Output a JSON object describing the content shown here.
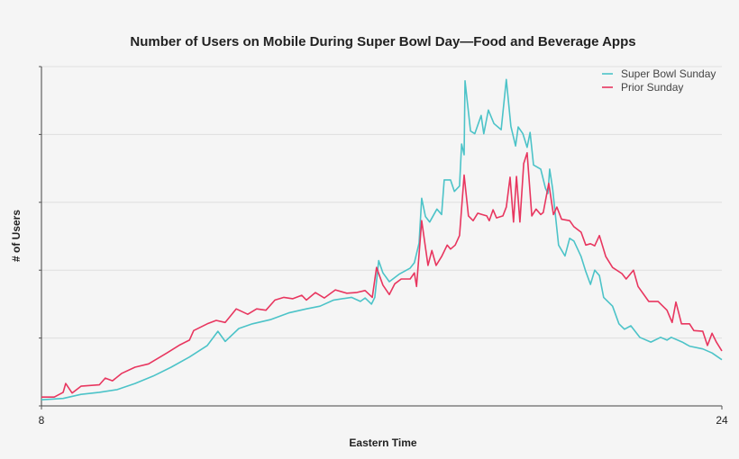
{
  "chart_data": {
    "type": "line",
    "title": "Number of Users on Mobile During Super Bowl Day—Food and Beverage Apps",
    "xlabel": "Eastern Time",
    "ylabel": "# of Users",
    "xlim": [
      8,
      24
    ],
    "ylim": [
      0,
      5
    ],
    "x_tick_labels": [
      "8",
      "24"
    ],
    "x_ticks": [
      8,
      24
    ],
    "y_ticks": [
      0,
      1,
      2,
      3,
      4,
      5
    ],
    "grid": "horizontal",
    "legend_position": "top-right",
    "series": [
      {
        "name": "Super Bowl Sunday",
        "color": "#4cc3c8",
        "points": [
          [
            8.0,
            0.09
          ],
          [
            8.51,
            0.11
          ],
          [
            8.93,
            0.17
          ],
          [
            9.36,
            0.2
          ],
          [
            9.78,
            0.24
          ],
          [
            10.2,
            0.33
          ],
          [
            10.63,
            0.44
          ],
          [
            11.05,
            0.57
          ],
          [
            11.48,
            0.72
          ],
          [
            11.9,
            0.89
          ],
          [
            12.15,
            1.1
          ],
          [
            12.32,
            0.95
          ],
          [
            12.64,
            1.14
          ],
          [
            12.96,
            1.21
          ],
          [
            13.38,
            1.27
          ],
          [
            13.81,
            1.37
          ],
          [
            14.23,
            1.43
          ],
          [
            14.55,
            1.47
          ],
          [
            14.87,
            1.56
          ],
          [
            15.29,
            1.6
          ],
          [
            15.5,
            1.54
          ],
          [
            15.61,
            1.59
          ],
          [
            15.76,
            1.5
          ],
          [
            15.84,
            1.6
          ],
          [
            15.93,
            2.14
          ],
          [
            16.03,
            1.96
          ],
          [
            16.18,
            1.83
          ],
          [
            16.41,
            1.94
          ],
          [
            16.67,
            2.03
          ],
          [
            16.77,
            2.11
          ],
          [
            16.88,
            2.4
          ],
          [
            16.94,
            3.06
          ],
          [
            17.03,
            2.79
          ],
          [
            17.13,
            2.71
          ],
          [
            17.3,
            2.9
          ],
          [
            17.41,
            2.82
          ],
          [
            17.47,
            3.33
          ],
          [
            17.62,
            3.33
          ],
          [
            17.71,
            3.16
          ],
          [
            17.83,
            3.24
          ],
          [
            17.88,
            3.86
          ],
          [
            17.94,
            3.7
          ],
          [
            17.96,
            4.79
          ],
          [
            18.09,
            4.05
          ],
          [
            18.19,
            4.01
          ],
          [
            18.34,
            4.28
          ],
          [
            18.4,
            4.01
          ],
          [
            18.51,
            4.36
          ],
          [
            18.64,
            4.16
          ],
          [
            18.81,
            4.07
          ],
          [
            18.93,
            4.81
          ],
          [
            19.04,
            4.12
          ],
          [
            19.15,
            3.83
          ],
          [
            19.21,
            4.11
          ],
          [
            19.32,
            4.01
          ],
          [
            19.42,
            3.81
          ],
          [
            19.49,
            4.03
          ],
          [
            19.57,
            3.55
          ],
          [
            19.74,
            3.49
          ],
          [
            19.85,
            3.21
          ],
          [
            19.91,
            3.13
          ],
          [
            19.95,
            3.49
          ],
          [
            20.02,
            3.2
          ],
          [
            20.16,
            2.37
          ],
          [
            20.31,
            2.21
          ],
          [
            20.42,
            2.47
          ],
          [
            20.52,
            2.43
          ],
          [
            20.69,
            2.2
          ],
          [
            20.8,
            1.98
          ],
          [
            20.91,
            1.79
          ],
          [
            21.01,
            2.0
          ],
          [
            21.12,
            1.92
          ],
          [
            21.22,
            1.6
          ],
          [
            21.43,
            1.47
          ],
          [
            21.58,
            1.21
          ],
          [
            21.71,
            1.13
          ],
          [
            21.86,
            1.18
          ],
          [
            22.07,
            1.01
          ],
          [
            22.33,
            0.94
          ],
          [
            22.56,
            1.01
          ],
          [
            22.71,
            0.97
          ],
          [
            22.81,
            1.01
          ],
          [
            23.07,
            0.94
          ],
          [
            23.24,
            0.88
          ],
          [
            23.55,
            0.84
          ],
          [
            23.77,
            0.78
          ],
          [
            24.0,
            0.68
          ]
        ]
      },
      {
        "name": "Prior Sunday",
        "color": "#e8365f",
        "points": [
          [
            8.0,
            0.13
          ],
          [
            8.3,
            0.13
          ],
          [
            8.51,
            0.2
          ],
          [
            8.57,
            0.33
          ],
          [
            8.72,
            0.19
          ],
          [
            8.93,
            0.29
          ],
          [
            9.36,
            0.31
          ],
          [
            9.5,
            0.41
          ],
          [
            9.67,
            0.37
          ],
          [
            9.89,
            0.48
          ],
          [
            10.2,
            0.57
          ],
          [
            10.52,
            0.62
          ],
          [
            10.95,
            0.78
          ],
          [
            11.26,
            0.9
          ],
          [
            11.48,
            0.97
          ],
          [
            11.58,
            1.11
          ],
          [
            11.9,
            1.21
          ],
          [
            12.11,
            1.26
          ],
          [
            12.32,
            1.23
          ],
          [
            12.58,
            1.43
          ],
          [
            12.85,
            1.35
          ],
          [
            13.06,
            1.43
          ],
          [
            13.28,
            1.41
          ],
          [
            13.49,
            1.56
          ],
          [
            13.7,
            1.6
          ],
          [
            13.91,
            1.58
          ],
          [
            14.12,
            1.63
          ],
          [
            14.23,
            1.56
          ],
          [
            14.44,
            1.67
          ],
          [
            14.65,
            1.59
          ],
          [
            14.91,
            1.71
          ],
          [
            15.18,
            1.66
          ],
          [
            15.4,
            1.67
          ],
          [
            15.61,
            1.7
          ],
          [
            15.78,
            1.6
          ],
          [
            15.88,
            2.04
          ],
          [
            16.03,
            1.78
          ],
          [
            16.18,
            1.64
          ],
          [
            16.31,
            1.8
          ],
          [
            16.46,
            1.87
          ],
          [
            16.67,
            1.87
          ],
          [
            16.77,
            1.96
          ],
          [
            16.82,
            1.76
          ],
          [
            16.94,
            2.73
          ],
          [
            17.09,
            2.07
          ],
          [
            17.18,
            2.29
          ],
          [
            17.28,
            2.07
          ],
          [
            17.41,
            2.2
          ],
          [
            17.54,
            2.37
          ],
          [
            17.62,
            2.31
          ],
          [
            17.73,
            2.37
          ],
          [
            17.83,
            2.51
          ],
          [
            17.94,
            3.4
          ],
          [
            18.04,
            2.8
          ],
          [
            18.15,
            2.73
          ],
          [
            18.26,
            2.84
          ],
          [
            18.36,
            2.82
          ],
          [
            18.47,
            2.8
          ],
          [
            18.53,
            2.73
          ],
          [
            18.62,
            2.89
          ],
          [
            18.7,
            2.77
          ],
          [
            18.85,
            2.8
          ],
          [
            18.93,
            2.93
          ],
          [
            19.02,
            3.37
          ],
          [
            19.1,
            2.71
          ],
          [
            19.17,
            3.38
          ],
          [
            19.25,
            2.71
          ],
          [
            19.34,
            3.57
          ],
          [
            19.42,
            3.73
          ],
          [
            19.53,
            2.8
          ],
          [
            19.63,
            2.9
          ],
          [
            19.74,
            2.82
          ],
          [
            19.8,
            2.85
          ],
          [
            19.93,
            3.28
          ],
          [
            20.04,
            2.82
          ],
          [
            20.12,
            2.93
          ],
          [
            20.23,
            2.75
          ],
          [
            20.42,
            2.73
          ],
          [
            20.52,
            2.64
          ],
          [
            20.69,
            2.56
          ],
          [
            20.8,
            2.37
          ],
          [
            20.91,
            2.39
          ],
          [
            21.01,
            2.36
          ],
          [
            21.12,
            2.51
          ],
          [
            21.27,
            2.2
          ],
          [
            21.43,
            2.04
          ],
          [
            21.65,
            1.95
          ],
          [
            21.75,
            1.87
          ],
          [
            21.92,
            2.0
          ],
          [
            22.03,
            1.76
          ],
          [
            22.28,
            1.54
          ],
          [
            22.5,
            1.54
          ],
          [
            22.71,
            1.41
          ],
          [
            22.83,
            1.23
          ],
          [
            22.92,
            1.53
          ],
          [
            23.05,
            1.21
          ],
          [
            23.24,
            1.21
          ],
          [
            23.34,
            1.11
          ],
          [
            23.55,
            1.1
          ],
          [
            23.66,
            0.89
          ],
          [
            23.77,
            1.07
          ],
          [
            23.87,
            0.94
          ],
          [
            24.0,
            0.81
          ]
        ]
      }
    ]
  }
}
